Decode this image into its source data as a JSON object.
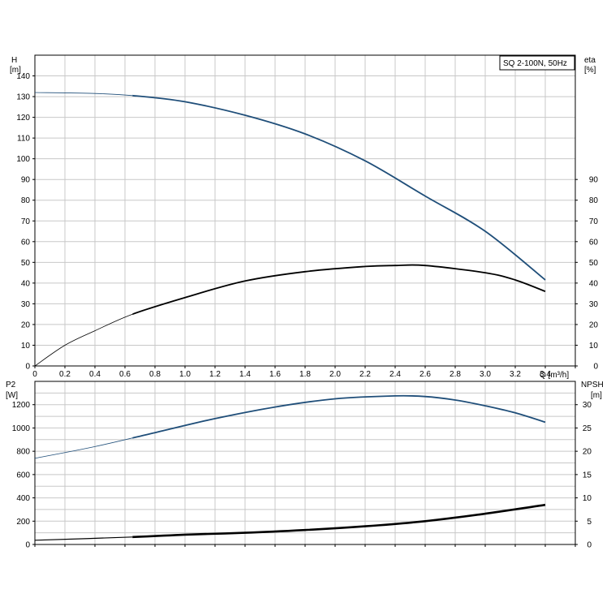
{
  "chart_data": [
    {
      "type": "line",
      "name": "pump-curve-top",
      "title": "SQ 2-100N, 50Hz",
      "xlabel": "Q [m³/h]",
      "ylabel_left": [
        "H",
        "[m]"
      ],
      "ylabel_right": [
        "eta",
        "[%]"
      ],
      "xlim": [
        0,
        3.6
      ],
      "ylim_left": [
        0,
        150
      ],
      "ylim_right": [
        0,
        150
      ],
      "x_ticks": [
        "0",
        "0.2",
        "0.4",
        "0.6",
        "0.8",
        "1.0",
        "1.2",
        "1.4",
        "1.6",
        "1.8",
        "2.0",
        "2.2",
        "2.4",
        "2.6",
        "2.8",
        "3.0",
        "3.2",
        "3.4"
      ],
      "y_ticks_left": [
        "0",
        "10",
        "20",
        "30",
        "40",
        "50",
        "60",
        "70",
        "80",
        "90",
        "100",
        "110",
        "120",
        "130",
        "140"
      ],
      "y_ticks_right": [
        "0",
        "10",
        "20",
        "30",
        "40",
        "50",
        "60",
        "70",
        "80",
        "90"
      ],
      "grid": true,
      "series": [
        {
          "axis": "left",
          "color": "#1f4e79",
          "x": [
            0,
            0.4,
            0.65,
            1.0,
            1.4,
            1.8,
            2.2,
            2.6,
            3.0,
            3.4
          ],
          "y": [
            132,
            131.5,
            130.5,
            127.5,
            121,
            112,
            99,
            82,
            65,
            41.5
          ]
        },
        {
          "axis": "right",
          "color": "#000000",
          "x": [
            0,
            0.2,
            0.4,
            0.65,
            1.0,
            1.4,
            1.8,
            2.2,
            2.4,
            2.6,
            3.0,
            3.2,
            3.4
          ],
          "y": [
            0,
            10,
            17,
            25,
            33,
            41,
            45.5,
            48,
            48.5,
            48.5,
            45,
            41.5,
            36
          ]
        }
      ]
    },
    {
      "type": "line",
      "name": "power-npsh-bottom",
      "ylabel_left": [
        "P2",
        "[W]"
      ],
      "ylabel_right": [
        "NPSH",
        "[m]"
      ],
      "xlim": [
        0,
        3.6
      ],
      "ylim_left": [
        0,
        1400
      ],
      "ylim_right": [
        0,
        35
      ],
      "y_ticks_left": [
        "0",
        "200",
        "400",
        "600",
        "800",
        "1000",
        "1200"
      ],
      "y_ticks_right": [
        "0",
        "5",
        "10",
        "15",
        "20",
        "25",
        "30"
      ],
      "grid": true,
      "series": [
        {
          "axis": "left",
          "color": "#1f4e79",
          "x": [
            0,
            0.4,
            0.8,
            1.2,
            1.6,
            2.0,
            2.4,
            2.6,
            2.8,
            3.0,
            3.2,
            3.4
          ],
          "y": [
            740,
            840,
            960,
            1080,
            1180,
            1250,
            1275,
            1270,
            1240,
            1190,
            1130,
            1050
          ]
        },
        {
          "axis": "right",
          "color": "#000000",
          "x": [
            0,
            0.65,
            1.0,
            1.4,
            1.8,
            2.2,
            2.6,
            3.0,
            3.4
          ],
          "y": [
            0.9,
            1.6,
            2.1,
            2.5,
            3.1,
            3.9,
            5.0,
            6.6,
            8.5
          ]
        }
      ]
    }
  ]
}
